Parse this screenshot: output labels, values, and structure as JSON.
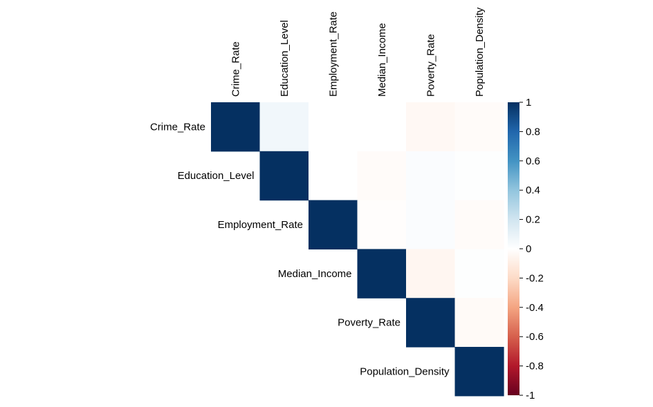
{
  "chart_data": {
    "type": "heatmap",
    "subtype": "correlation-upper-triangle",
    "title": "",
    "variables": [
      "Crime_Rate",
      "Education_Level",
      "Employment_Rate",
      "Median_Income",
      "Poverty_Rate",
      "Population_Density"
    ],
    "matrix": [
      [
        1.0,
        0.06,
        0.0,
        0.0,
        -0.04,
        -0.02
      ],
      [
        null,
        1.0,
        0.0,
        -0.02,
        0.02,
        0.01
      ],
      [
        null,
        null,
        1.0,
        -0.01,
        0.02,
        -0.02
      ],
      [
        null,
        null,
        null,
        1.0,
        -0.05,
        0.01
      ],
      [
        null,
        null,
        null,
        null,
        1.0,
        -0.03
      ],
      [
        null,
        null,
        null,
        null,
        null,
        1.0
      ]
    ],
    "colorbar": {
      "min": -1,
      "max": 1,
      "ticks": [
        "1",
        "0.8",
        "0.6",
        "0.4",
        "0.2",
        "0",
        "-0.2",
        "-0.4",
        "-0.6",
        "-0.8",
        "-1"
      ],
      "colors": [
        "#67001F",
        "#B2182B",
        "#D6604D",
        "#F4A582",
        "#FDDBC7",
        "#FFFFFF",
        "#D1E5F0",
        "#92C5DE",
        "#4393C3",
        "#2166AC",
        "#053061"
      ]
    }
  }
}
